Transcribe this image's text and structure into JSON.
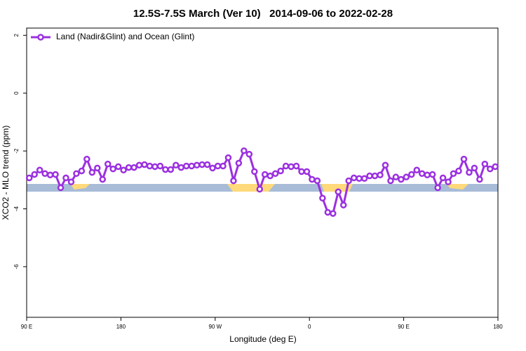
{
  "chart_data": {
    "type": "line",
    "title": "12.5S-7.5S March (Ver 10)   2014-09-06 to 2022-02-28",
    "xlabel": "Longitude (deg E)",
    "ylabel": "XCO2 - MLO trend (ppm)",
    "xlim": [
      90,
      540
    ],
    "ylim": [
      -7.75,
      2.25
    ],
    "xticks": [
      {
        "value": 90,
        "label": "90 E"
      },
      180,
      {
        "value": 270,
        "label": "90 W"
      },
      {
        "value": 360,
        "label": "0"
      },
      {
        "value": 450,
        "label": "90 E"
      },
      {
        "value": 540,
        "label": "180"
      }
    ],
    "yticks": [
      2,
      0,
      -2,
      -4,
      -6
    ],
    "legend": "upper left",
    "series": [
      {
        "name": "Land (Nadir&Glint) and Ocean (Glint)",
        "color": "#9b30e0",
        "x": [
          92.5,
          97.5,
          102.5,
          107.5,
          112.5,
          117.5,
          122.5,
          127.5,
          132.5,
          137.5,
          142.5,
          147.5,
          152.5,
          157.5,
          162.5,
          167.5,
          172.5,
          177.5,
          182.5,
          187.5,
          192.5,
          197.5,
          202.5,
          207.5,
          212.5,
          217.5,
          222.5,
          227.5,
          232.5,
          237.5,
          242.5,
          247.5,
          252.5,
          257.5,
          262.5,
          267.5,
          272.5,
          277.5,
          282.5,
          287.5,
          292.5,
          297.5,
          302.5,
          307.5,
          312.5,
          317.5,
          322.5,
          327.5,
          332.5,
          337.5,
          342.5,
          347.5,
          352.5,
          357.5,
          362.5,
          367.5,
          372.5,
          377.5,
          382.5,
          387.5,
          392.5,
          397.5,
          402.5,
          407.5,
          412.5,
          417.5,
          422.5,
          427.5,
          432.5,
          437.5,
          442.5,
          447.5,
          452.5,
          457.5,
          462.5,
          467.5,
          472.5,
          477.5,
          482.5,
          487.5,
          492.5,
          497.5,
          502.5,
          507.5,
          512.5,
          517.5,
          522.5,
          527.5,
          532.5,
          537.5
        ],
        "values": [
          -2.93,
          -2.81,
          -2.66,
          -2.78,
          -2.83,
          -2.81,
          -3.27,
          -2.93,
          -3.07,
          -2.78,
          -2.69,
          -2.28,
          -2.74,
          -2.59,
          -2.98,
          -2.45,
          -2.62,
          -2.54,
          -2.66,
          -2.57,
          -2.57,
          -2.49,
          -2.47,
          -2.52,
          -2.54,
          -2.52,
          -2.64,
          -2.64,
          -2.49,
          -2.57,
          -2.52,
          -2.52,
          -2.49,
          -2.47,
          -2.47,
          -2.59,
          -2.52,
          -2.52,
          -2.23,
          -3.03,
          -2.42,
          -1.99,
          -2.11,
          -2.71,
          -3.32,
          -2.81,
          -2.86,
          -2.78,
          -2.69,
          -2.52,
          -2.54,
          -2.52,
          -2.71,
          -2.71,
          -2.98,
          -3.03,
          -3.63,
          -4.12,
          -4.16,
          -3.41,
          -3.87,
          -3.03,
          -2.93,
          -2.95,
          -2.95,
          -2.86,
          -2.86,
          -2.83,
          -2.49,
          -3.03,
          -2.9,
          -2.98,
          -2.9,
          -2.81,
          -2.66,
          -2.78,
          -2.83,
          -2.81,
          -3.27,
          -2.93,
          -3.07,
          -2.78,
          -2.69,
          -2.28,
          -2.74,
          -2.59,
          -2.98,
          -2.45,
          -2.62,
          -2.54
        ]
      }
    ]
  }
}
